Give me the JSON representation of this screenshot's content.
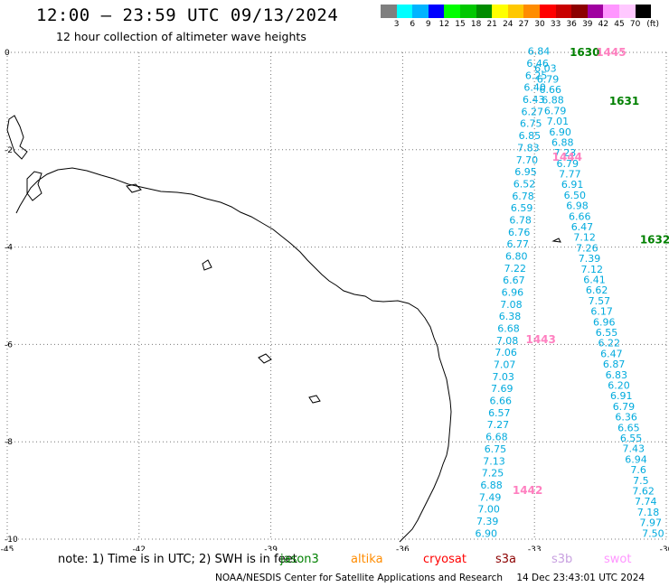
{
  "header": {
    "title": "12:00 – 23:59 UTC 09/13/2024",
    "subtitle": "12 hour collection of altimeter wave heights"
  },
  "scale": {
    "labels": [
      "3",
      "6",
      "9",
      "12",
      "15",
      "18",
      "21",
      "24",
      "27",
      "30",
      "33",
      "36",
      "39",
      "42",
      "45",
      "70",
      "(ft)"
    ],
    "colors": [
      "#7f7f7f",
      "#00ffff",
      "#00b4ff",
      "#0000ff",
      "#00ff00",
      "#00c800",
      "#008c00",
      "#ffff00",
      "#ffc800",
      "#ff8c00",
      "#ff0000",
      "#c80000",
      "#8c0000",
      "#a000a0",
      "#ff96ff",
      "#ffc8ff",
      "#000000"
    ]
  },
  "map": {
    "lon_labels": [
      "-45",
      "-42",
      "-39",
      "-36",
      "-33",
      "-30"
    ],
    "lat_labels": [
      "0",
      "-2",
      "-4",
      "-6",
      "-8",
      "-10"
    ],
    "colors": {
      "grid": "#777777",
      "coast": "#000000",
      "wave": "#00aadd",
      "track_green": "#008000",
      "track_pink": "#ff80c0"
    },
    "tracks": [
      {
        "id": "1630",
        "color": "green",
        "lon": -32.2,
        "lat": 0.0
      },
      {
        "id": "1631",
        "color": "green",
        "lon": -31.3,
        "lat": -1.0
      },
      {
        "id": "1632",
        "color": "green",
        "lon": -30.6,
        "lat": -3.85
      },
      {
        "id": "1445",
        "color": "pink",
        "lon": -31.6,
        "lat": 0.0
      },
      {
        "id": "1444",
        "color": "pink",
        "lon": -32.6,
        "lat": -2.15
      },
      {
        "id": "1443",
        "color": "pink",
        "lon": -33.2,
        "lat": -5.9
      },
      {
        "id": "1442",
        "color": "pink",
        "lon": -33.5,
        "lat": -9.0
      }
    ],
    "waves_track_a": [
      "6.84",
      "6.46",
      "6.25",
      "6.40",
      "6.43",
      "6.27",
      "6.75",
      "6.85",
      "7.83",
      "7.70",
      "6.95",
      "6.52",
      "6.78",
      "6.59",
      "6.78",
      "6.76",
      "6.77",
      "6.80",
      "7.22",
      "6.67",
      "6.96",
      "7.08",
      "6.38",
      "6.68",
      "7.08",
      "7.06",
      "7.07",
      "7.03",
      "7.69",
      "6.66",
      "6.57",
      "7.27",
      "6.68",
      "6.75",
      "7.13",
      "7.25",
      "6.88",
      "7.49",
      "7.00",
      "7.39",
      "6.90"
    ],
    "waves_track_b": [
      "6.03",
      "6.79",
      "6.66",
      "6.88",
      "6.79",
      "7.01",
      "6.90",
      "6.88",
      "7.23",
      "6.79",
      "7.77",
      "6.91",
      "6.50",
      "6.98",
      "6.66",
      "6.47",
      "7.12",
      "7.26",
      "7.39",
      "7.12",
      "6.41",
      "6.62",
      "7.57",
      "6.17",
      "6.96",
      "6.55",
      "6.22",
      "6.47",
      "6.87",
      "6.83",
      "6.20",
      "6.91",
      "6.79",
      "6.36",
      "6.65",
      "6.55",
      "7.43",
      "6.94",
      "7.6",
      "7.5",
      "7.62",
      "7.74",
      "7.18",
      "7.97",
      "7.50"
    ]
  },
  "footer": {
    "note": "note: 1) Time is in UTC; 2) SWH is in feet",
    "satellites": [
      {
        "name": "jason3",
        "color": "#008000"
      },
      {
        "name": "altika",
        "color": "#ff8c00"
      },
      {
        "name": "cryosat",
        "color": "#ff0000"
      },
      {
        "name": "s3a",
        "color": "#8c0000"
      },
      {
        "name": "s3b",
        "color": "#c8a0e0"
      },
      {
        "name": "swot",
        "color": "#ff96ff"
      }
    ],
    "credit": "NOAA/NESDIS Center for Satellite Applications and Research",
    "timestamp": "14 Dec 23:43:01 UTC 2024"
  }
}
